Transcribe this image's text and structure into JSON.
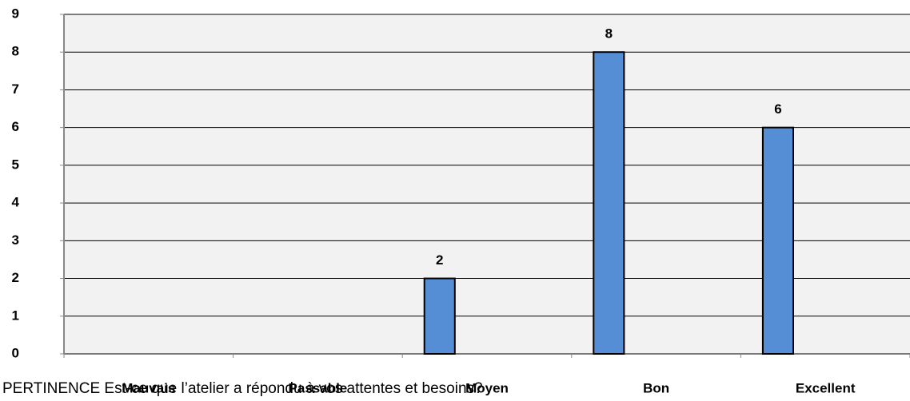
{
  "chart_data": {
    "type": "bar",
    "title": "PERTINENCE Est-ce que l’atelier a répondu à vos attentes et besoins?",
    "categories": [
      "Mauvais",
      "Passable",
      "Moyen",
      "Bon",
      "Excellent"
    ],
    "values": [
      null,
      null,
      2,
      8,
      6
    ],
    "color": "#558ed5",
    "ylim": [
      0,
      9
    ],
    "yticks": [
      0,
      1,
      2,
      3,
      4,
      5,
      6,
      7,
      8,
      9
    ],
    "grid": true
  }
}
